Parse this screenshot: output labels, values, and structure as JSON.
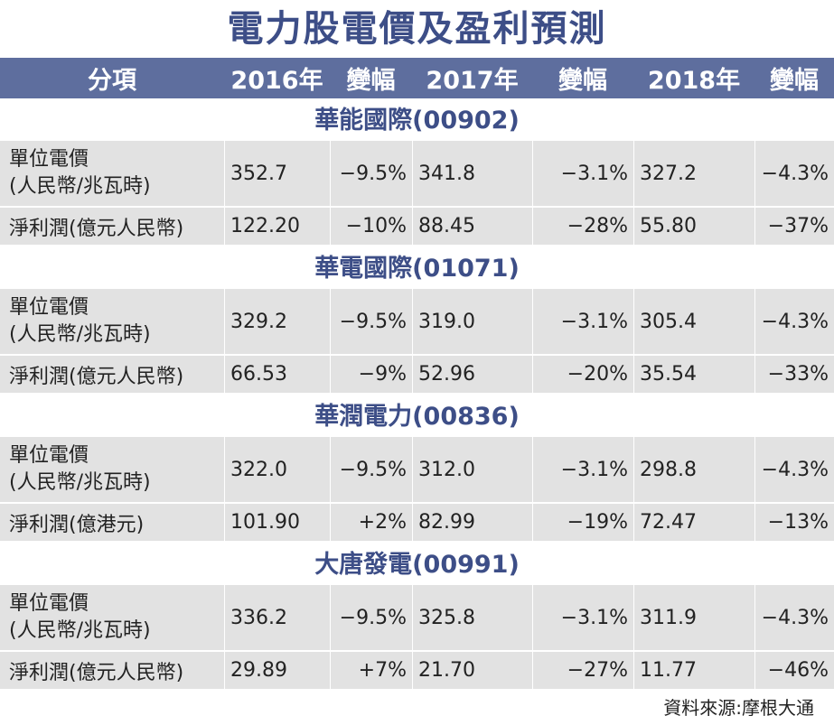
{
  "title": "電力股電價及盈利預測",
  "header": [
    "分項",
    "2016年",
    "變幅",
    "2017年",
    "變幅",
    "2018年",
    "變幅"
  ],
  "sections": [
    {
      "name": "華能國際(00902)",
      "rows": [
        {
          "label1": "單位電價",
          "label2": "(人民幣/兆瓦時)",
          "values": [
            "352.7",
            "−9.5%",
            "341.8",
            "−3.1%",
            "327.2",
            "−4.3%"
          ]
        },
        {
          "label1": "淨利潤(億元人民幣)",
          "label2": "",
          "values": [
            "122.20",
            "−10%",
            "88.45",
            "−28%",
            "55.80",
            "−37%"
          ]
        }
      ]
    },
    {
      "name": "華電國際(01071)",
      "rows": [
        {
          "label1": "單位電價",
          "label2": "(人民幣/兆瓦時)",
          "values": [
            "329.2",
            "−9.5%",
            "319.0",
            "−3.1%",
            "305.4",
            "−4.3%"
          ]
        },
        {
          "label1": "淨利潤(億元人民幣)",
          "label2": "",
          "values": [
            "66.53",
            "−9%",
            "52.96",
            "−20%",
            "35.54",
            "−33%"
          ]
        }
      ]
    },
    {
      "name": "華潤電力(00836)",
      "rows": [
        {
          "label1": "單位電價",
          "label2": "(人民幣/兆瓦時)",
          "values": [
            "322.0",
            "−9.5%",
            "312.0",
            "−3.1%",
            "298.8",
            "−4.3%"
          ]
        },
        {
          "label1": "淨利潤(億港元)",
          "label2": "",
          "values": [
            "101.90",
            "+2%",
            "82.99",
            "−19%",
            "72.47",
            "−13%"
          ]
        }
      ]
    },
    {
      "name": "大唐發電(00991)",
      "rows": [
        {
          "label1": "單位電價",
          "label2": "(人民幣/兆瓦時)",
          "values": [
            "336.2",
            "−9.5%",
            "325.8",
            "−3.1%",
            "311.9",
            "−4.3%"
          ]
        },
        {
          "label1": "淨利潤(億元人民幣)",
          "label2": "",
          "values": [
            "29.89",
            "+7%",
            "21.70",
            "−27%",
            "11.77",
            "−46%"
          ]
        }
      ]
    }
  ],
  "source": "資料來源:摩根大通"
}
